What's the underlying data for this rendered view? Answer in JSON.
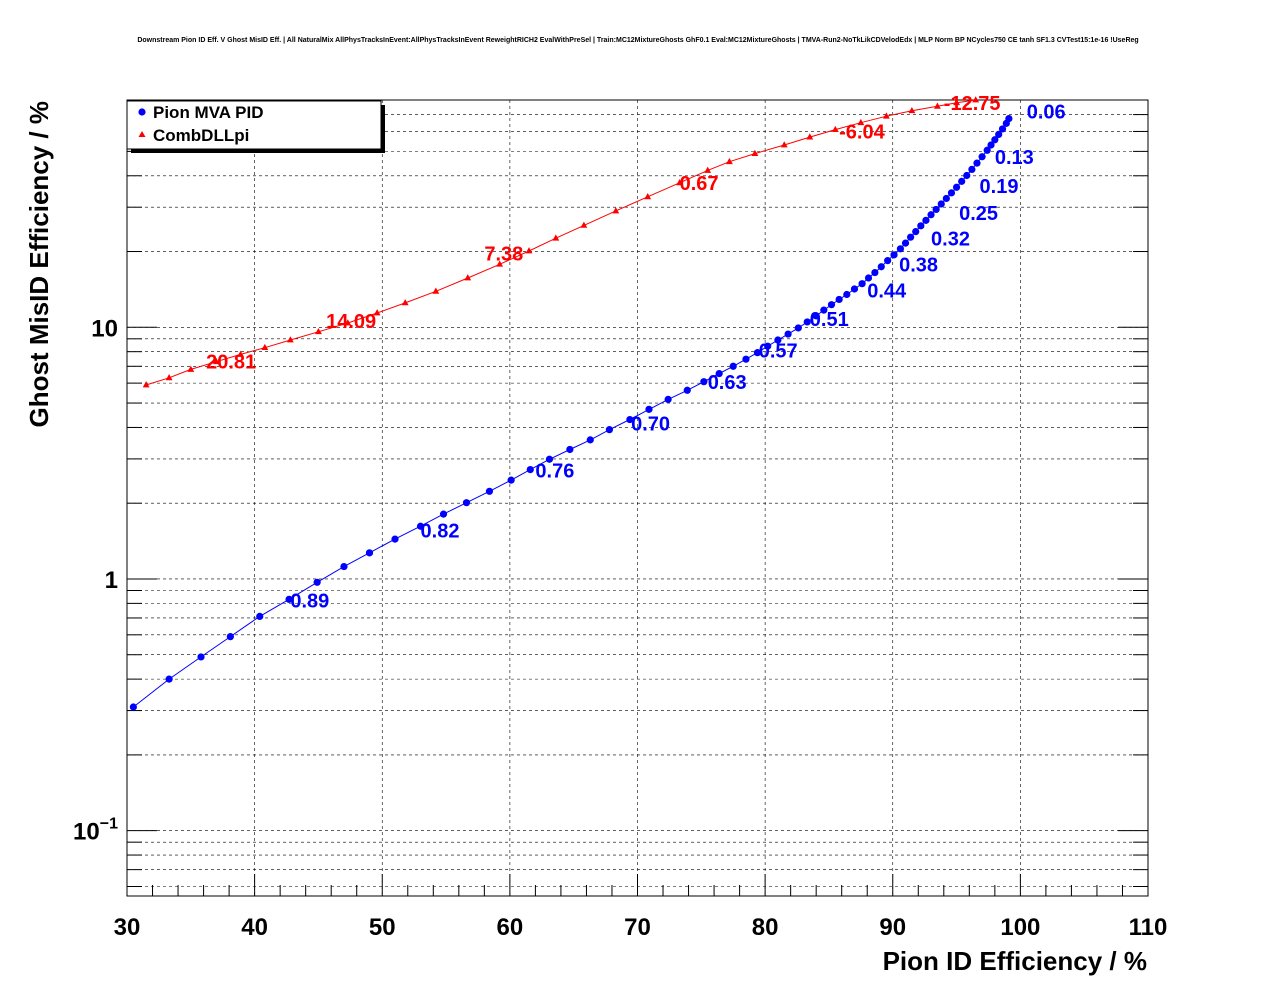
{
  "chart_data": {
    "type": "line",
    "title": "Downstream Pion ID Eff. V Ghost MisID Eff. | All NaturalMix AllPhysTracksInEvent:AllPhysTracksInEvent ReweightRICH2 EvalWithPreSel | Train:MC12MixtureGhosts GhF0.1 Eval:MC12MixtureGhosts | TMVA-Run2-NoTkLikCDVelodEdx | MLP Norm BP NCycles750 CE tanh SF1.3 CVTest15:1e-16 !UseReg",
    "xlabel": "Pion ID Efficiency / %",
    "ylabel": "Ghost MisID Efficiency / %",
    "xlim": [
      30,
      110
    ],
    "ylim": [
      0.055,
      80
    ],
    "yscale": "log",
    "grid": true,
    "legend_position": "top-left",
    "x_ticks": [
      "30",
      "40",
      "50",
      "60",
      "70",
      "80",
      "90",
      "100",
      "110"
    ],
    "y_ticks": [
      {
        "value": 0.1,
        "base": "10",
        "exp": "−1"
      },
      {
        "value": 1,
        "base": "1",
        "exp": ""
      },
      {
        "value": 10,
        "base": "10",
        "exp": ""
      }
    ],
    "series": [
      {
        "name": "Pion MVA PID",
        "color": "#0000ff",
        "marker": "circle",
        "x": [
          30.5,
          33.3,
          35.8,
          38.1,
          40.4,
          42.7,
          44.9,
          47.0,
          49.0,
          51.0,
          53.0,
          54.8,
          56.6,
          58.4,
          60.1,
          61.6,
          63.1,
          64.7,
          66.3,
          67.8,
          69.4,
          70.9,
          72.4,
          73.9,
          75.2,
          76.4,
          77.5,
          78.5,
          79.4,
          80.2,
          81.0,
          81.8,
          82.6,
          83.3,
          84.0,
          84.6,
          85.2,
          85.8,
          86.4,
          87.0,
          87.6,
          88.1,
          88.6,
          89.1,
          89.6,
          90.1,
          90.6,
          91.0,
          91.4,
          91.8,
          92.2,
          92.6,
          93.0,
          93.4,
          93.8,
          94.2,
          94.6,
          95.0,
          95.4,
          95.8,
          96.2,
          96.6,
          97.0,
          97.4,
          97.7,
          98.0,
          98.3,
          98.6,
          98.9,
          99.1
        ],
        "y": [
          0.31,
          0.4,
          0.49,
          0.59,
          0.71,
          0.83,
          0.97,
          1.12,
          1.27,
          1.44,
          1.62,
          1.81,
          2.01,
          2.23,
          2.47,
          2.72,
          2.99,
          3.27,
          3.57,
          3.92,
          4.3,
          4.72,
          5.17,
          5.62,
          6.08,
          6.55,
          7.0,
          7.47,
          7.93,
          8.41,
          8.9,
          9.4,
          9.94,
          10.5,
          11.1,
          11.7,
          12.3,
          12.9,
          13.5,
          14.2,
          14.9,
          15.7,
          16.5,
          17.4,
          18.4,
          19.4,
          20.5,
          21.6,
          22.8,
          24.0,
          25.3,
          26.6,
          28.0,
          29.4,
          30.9,
          32.5,
          34.2,
          36.0,
          38.0,
          40.1,
          42.4,
          44.9,
          47.6,
          50.5,
          53.0,
          55.6,
          58.4,
          61.4,
          64.6,
          67.5
        ]
      },
      {
        "name": "CombDLLpi",
        "color": "#ff0000",
        "marker": "triangle",
        "x": [
          31.5,
          33.3,
          35.0,
          37.0,
          38.9,
          40.8,
          42.8,
          45.0,
          47.3,
          49.6,
          51.8,
          54.2,
          56.7,
          59.2,
          61.5,
          63.6,
          65.8,
          68.3,
          70.8,
          73.3,
          75.5,
          77.2,
          79.2,
          81.5,
          83.5,
          85.5,
          87.5,
          89.5,
          91.5,
          93.5,
          95.0,
          96.5
        ],
        "y": [
          5.9,
          6.3,
          6.8,
          7.3,
          7.8,
          8.3,
          8.9,
          9.6,
          10.4,
          11.4,
          12.5,
          13.9,
          15.7,
          17.8,
          20.1,
          22.6,
          25.4,
          29.0,
          33.0,
          37.5,
          42.0,
          45.5,
          49.0,
          53.0,
          57.0,
          61.0,
          65.0,
          69.0,
          72.5,
          75.5,
          78.0,
          80.0
        ]
      }
    ],
    "annotations": [
      {
        "series": "Pion MVA PID",
        "text": "0.89",
        "x": 42.8,
        "y": 0.82
      },
      {
        "series": "Pion MVA PID",
        "text": "0.82",
        "x": 53.0,
        "y": 1.56
      },
      {
        "series": "Pion MVA PID",
        "text": "0.76",
        "x": 62.0,
        "y": 2.7
      },
      {
        "series": "Pion MVA PID",
        "text": "0.70",
        "x": 69.5,
        "y": 4.15
      },
      {
        "series": "Pion MVA PID",
        "text": "0.63",
        "x": 75.5,
        "y": 6.05
      },
      {
        "series": "Pion MVA PID",
        "text": "0.57",
        "x": 79.5,
        "y": 8.1
      },
      {
        "series": "Pion MVA PID",
        "text": "0.51",
        "x": 83.5,
        "y": 10.8
      },
      {
        "series": "Pion MVA PID",
        "text": "0.44",
        "x": 88.0,
        "y": 14.0
      },
      {
        "series": "Pion MVA PID",
        "text": "0.38",
        "x": 90.5,
        "y": 17.8
      },
      {
        "series": "Pion MVA PID",
        "text": "0.32",
        "x": 93.0,
        "y": 22.5
      },
      {
        "series": "Pion MVA PID",
        "text": "0.25",
        "x": 95.2,
        "y": 28.5
      },
      {
        "series": "Pion MVA PID",
        "text": "0.19",
        "x": 96.8,
        "y": 36.5
      },
      {
        "series": "Pion MVA PID",
        "text": "0.13",
        "x": 98.0,
        "y": 47.5
      },
      {
        "series": "Pion MVA PID",
        "text": "0.06",
        "x": 100.5,
        "y": 72.0
      },
      {
        "series": "CombDLLpi",
        "text": "20.81",
        "x": 36.2,
        "y": 7.3
      },
      {
        "series": "CombDLLpi",
        "text": "14.09",
        "x": 45.6,
        "y": 10.6
      },
      {
        "series": "CombDLLpi",
        "text": "7.38",
        "x": 58.0,
        "y": 19.6
      },
      {
        "series": "CombDLLpi",
        "text": "0.67",
        "x": 73.3,
        "y": 37.5
      },
      {
        "series": "CombDLLpi",
        "text": "-6.04",
        "x": 85.8,
        "y": 60.0
      },
      {
        "series": "CombDLLpi",
        "text": "-12.75",
        "x": 94.0,
        "y": 78.0
      }
    ]
  }
}
